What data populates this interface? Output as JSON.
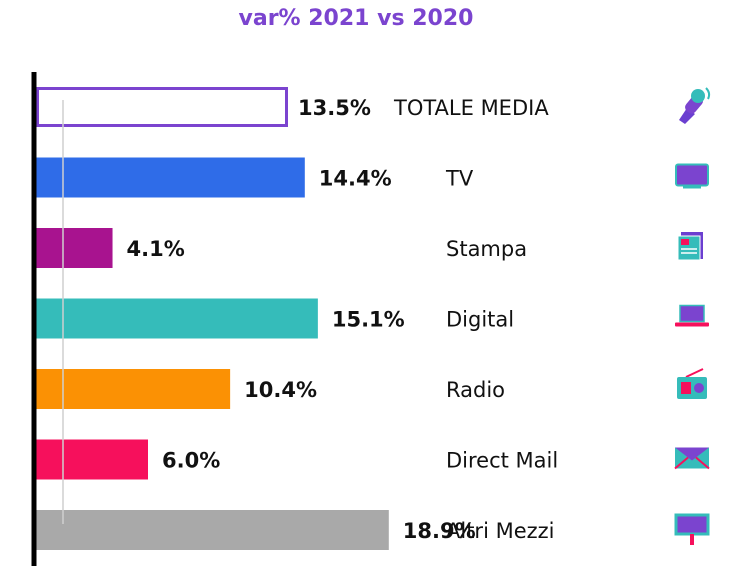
{
  "chart_data": {
    "type": "bar",
    "orientation": "horizontal",
    "title": "var% 2021 vs 2020",
    "categories": [
      "TOTALE MEDIA",
      "TV",
      "Stampa",
      "Digital",
      "Radio",
      "Direct Mail",
      "Altri Mezzi"
    ],
    "values": [
      13.5,
      14.4,
      4.1,
      15.1,
      10.4,
      6.0,
      18.9
    ],
    "value_labels": [
      "13.5%",
      "14.4%",
      "4.1%",
      "15.1%",
      "10.4%",
      "6.0%",
      "18.9%"
    ],
    "colors": [
      "#7b44cf",
      "#2f6ce8",
      "#a8138f",
      "#35bcba",
      "#fb9104",
      "#f6105c",
      "#a9a9a9"
    ],
    "outlined": [
      true,
      false,
      false,
      false,
      false,
      false,
      false
    ],
    "icons": [
      "microphone-icon",
      "tv-icon",
      "newspaper-icon",
      "laptop-icon",
      "radio-icon",
      "mail-icon",
      "billboard-icon"
    ],
    "xlim": [
      0,
      21
    ],
    "xlabel": "",
    "ylabel": "",
    "grid": false,
    "legend": "none"
  }
}
